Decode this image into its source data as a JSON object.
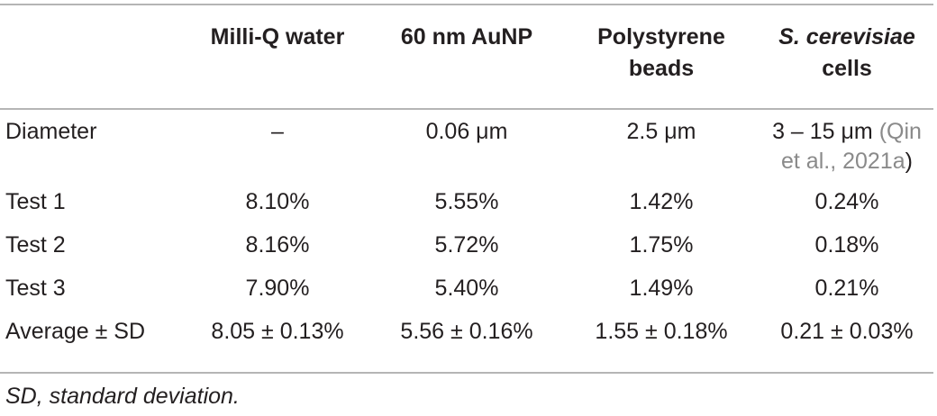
{
  "table": {
    "header": {
      "col0": "",
      "col1": "Milli-Q water",
      "col2": "60 nm AuNP",
      "col3_line1": "Polystyrene",
      "col3_line2": "beads",
      "col4_line1": "S. cerevisiae",
      "col4_line2": "cells"
    },
    "diameter": {
      "label": "Diameter",
      "water": "–",
      "aunp": "0.06 μm",
      "beads": "2.5 μm",
      "cells_value": "3 – 15 μm",
      "cells_cite_part1": "(Qin",
      "cells_cite_part2": "et al., 2021a",
      "cells_cite_close": ")"
    },
    "rows": [
      {
        "label": "Test 1",
        "water": "8.10%",
        "aunp": "5.55%",
        "beads": "1.42%",
        "cells": "0.24%"
      },
      {
        "label": "Test 2",
        "water": "8.16%",
        "aunp": "5.72%",
        "beads": "1.75%",
        "cells": "0.18%"
      },
      {
        "label": "Test 3",
        "water": "7.90%",
        "aunp": "5.40%",
        "beads": "1.49%",
        "cells": "0.21%"
      },
      {
        "label": "Average ± SD",
        "water": "8.05 ± 0.13%",
        "aunp": "5.56 ± 0.16%",
        "beads": "1.55 ± 0.18%",
        "cells": "0.21 ± 0.03%"
      }
    ]
  },
  "footnote": "SD, standard deviation."
}
